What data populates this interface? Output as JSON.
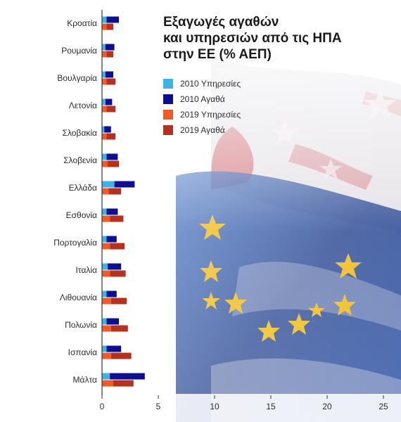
{
  "title_lines": [
    "Εξαγωγές αγαθών",
    "και υπηρεσιών από τις ΗΠΑ",
    "στην ΕΕ (% ΑΕΠ)"
  ],
  "colors": {
    "services_2010": "#3db2e6",
    "goods_2010": "#0c0f8f",
    "services_2019": "#f05a28",
    "goods_2019": "#b5311d",
    "axis": "#333333",
    "header_rule": "#1b1f7a"
  },
  "icons": [
    "eu-flag-icon",
    "us-flag-icon"
  ],
  "chart_data": {
    "type": "bar",
    "orientation": "horizontal",
    "categories": [
      "Κροατία",
      "Ρουμανία",
      "Βουλγαρία",
      "Λετονία",
      "Σλοβακία",
      "Σλοβενία",
      "Ελλάδα",
      "Εσθονία",
      "Πορτογαλία",
      "Ιταλία",
      "Λιθουανία",
      "Πολωνία",
      "Ισπανία",
      "Μάλτα"
    ],
    "series": [
      {
        "name": "2010 Υπηρεσίες",
        "color": "#3db2e6",
        "values": [
          0.4,
          0.3,
          0.3,
          0.3,
          0.2,
          0.4,
          1.1,
          0.4,
          0.4,
          0.5,
          0.4,
          0.4,
          0.4,
          0.7
        ]
      },
      {
        "name": "2010 Αγαθά",
        "color": "#0c0f8f",
        "values": [
          1.1,
          0.8,
          0.7,
          0.6,
          0.6,
          1.0,
          1.8,
          1.0,
          0.9,
          1.2,
          0.9,
          1.1,
          1.3,
          3.1
        ]
      },
      {
        "name": "2019 Υπηρεσίες",
        "color": "#f05a28",
        "values": [
          0.4,
          0.4,
          0.4,
          0.4,
          0.4,
          0.5,
          0.6,
          0.7,
          0.7,
          0.7,
          0.8,
          0.8,
          0.8,
          1.0
        ]
      },
      {
        "name": "2019 Αγαθά",
        "color": "#b5311d",
        "values": [
          0.6,
          0.6,
          0.8,
          0.8,
          0.8,
          1.0,
          1.1,
          1.2,
          1.3,
          1.4,
          1.4,
          1.5,
          1.8,
          1.8
        ]
      }
    ],
    "x_ticks": [
      0,
      5,
      10,
      15,
      20,
      25
    ],
    "xlim": [
      0,
      25
    ],
    "grid": false,
    "legend_position": "top-right"
  }
}
